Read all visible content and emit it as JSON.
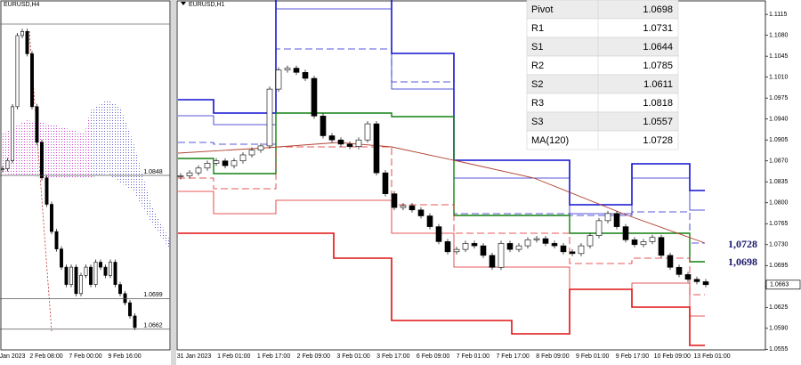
{
  "chart_data": [
    {
      "type": "candlestick",
      "title": "EURUSD,H4",
      "close": [
        1.0856,
        1.0866,
        1.0931,
        1.1017,
        1.1022,
        1.0995,
        1.0931,
        1.0888,
        1.0845,
        1.0813,
        1.078,
        1.0759,
        1.0737,
        1.0716,
        1.0737,
        1.0705,
        1.0727,
        1.0737,
        1.0716,
        1.0743,
        1.0737,
        1.0727,
        1.0743,
        1.0716,
        1.0705,
        1.0694,
        1.0678,
        1.0664
      ],
      "ylim": [
        1.0651,
        1.106
      ],
      "levels": [
        1.0848,
        1.0699,
        1.0662
      ],
      "xticks": [
        "Jan 2023",
        "2 Feb 08:00",
        "7 Feb 00:00",
        "9 Feb 16:00"
      ]
    },
    {
      "type": "candlestick",
      "title": "EURUSD,H1",
      "close": [
        1.0845,
        1.085,
        1.0858,
        1.0866,
        1.087,
        1.0862,
        1.087,
        1.088,
        1.0888,
        1.0895,
        1.099,
        1.1022,
        1.1025,
        1.1018,
        1.1008,
        1.0945,
        1.0912,
        1.0905,
        1.0898,
        1.0894,
        1.0905,
        1.0932,
        1.085,
        1.0815,
        1.0792,
        1.0795,
        1.0788,
        1.0778,
        1.076,
        1.0735,
        1.0718,
        1.0722,
        1.0732,
        1.0728,
        1.0712,
        1.0692,
        1.0732,
        1.0722,
        1.0728,
        1.0738,
        1.074,
        1.0732,
        1.0728,
        1.0718,
        1.0715,
        1.0728,
        1.0745,
        1.077,
        1.0782,
        1.076,
        1.0738,
        1.073,
        1.0735,
        1.0742,
        1.0712,
        1.0692,
        1.068,
        1.0672,
        1.0668,
        1.0663
      ],
      "ylim": [
        1.0554,
        1.1139
      ],
      "yticks": [
        1.1115,
        {
          "value": 1.108,
          "label": "1.1080"
        },
        1.1045,
        {
          "value": 1.101,
          "label": "1.1010"
        },
        1.0975,
        {
          "value": 1.094,
          "label": "1.0940"
        },
        1.0905,
        {
          "value": 1.087,
          "label": "1.0870"
        },
        1.0835,
        {
          "value": 1.08,
          "label": "1.0800"
        },
        1.0765,
        {
          "value": 1.073,
          "label": "1.0730"
        },
        1.0695,
        {
          "value": 1.066,
          "label": "1.0660"
        },
        1.0625,
        {
          "value": 1.059,
          "label": "1.0590"
        },
        1.0555
      ],
      "last_price": 1.0663,
      "annotations": [
        {
          "value": 1.0728,
          "label": "1,0728"
        },
        {
          "value": 1.0698,
          "label": "1,0698"
        }
      ],
      "xticks": [
        "31 Jan 2023",
        "1 Feb 01:00",
        "1 Feb 17:00",
        "2 Feb 09:00",
        "3 Feb 01:00",
        "3 Feb 17:00",
        "6 Feb 09:00",
        "7 Feb 01:00",
        "7 Feb 17:00",
        "8 Feb 09:00",
        "9 Feb 01:00",
        "9 Feb 17:00",
        "10 Feb 09:00",
        "13 Feb 01:00"
      ],
      "table": [
        [
          "Pivot",
          1.0698
        ],
        [
          "R1",
          1.0731
        ],
        [
          "S1",
          1.0644
        ],
        [
          "R2",
          1.0785
        ],
        [
          "S2",
          1.0611
        ],
        [
          "R3",
          1.0818
        ],
        [
          "S3",
          1.0557
        ],
        [
          "MA(120)",
          1.0728
        ]
      ]
    }
  ]
}
